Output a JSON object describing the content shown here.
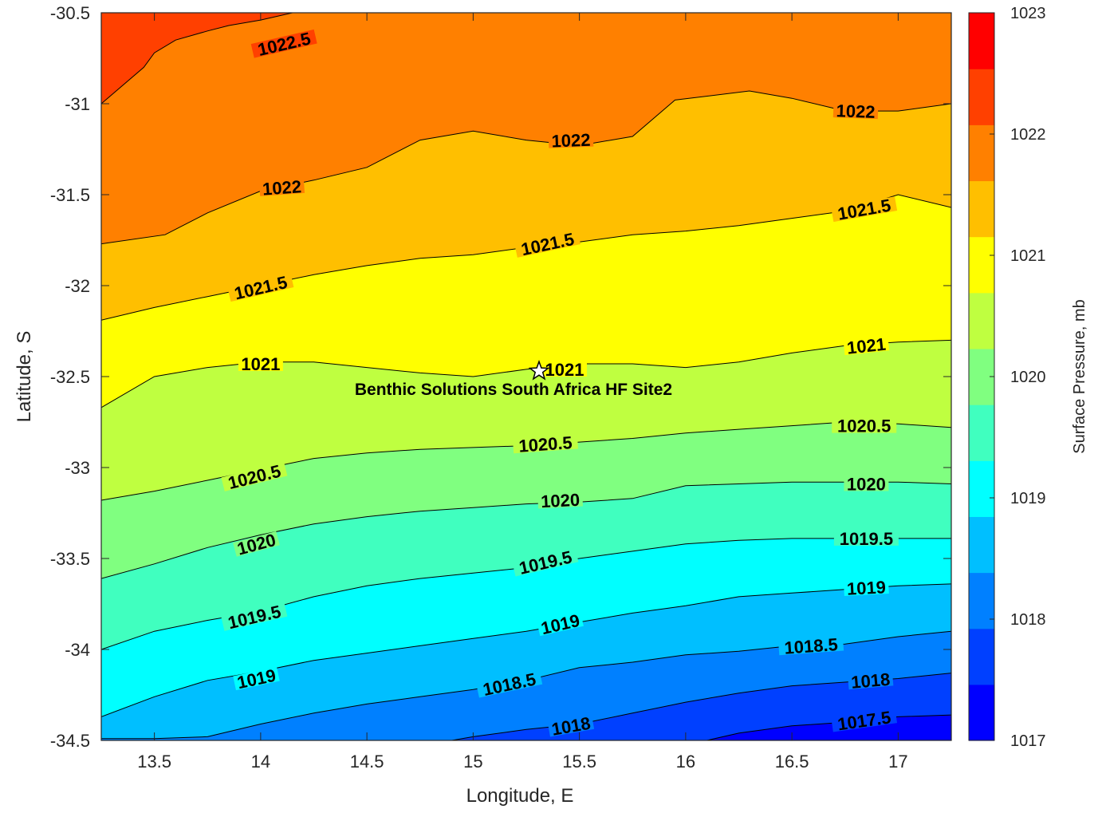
{
  "chart_data": {
    "type": "contour",
    "xlabel": "Longitude, E",
    "ylabel": "Latitude, S",
    "xlim": [
      13.25,
      17.25
    ],
    "ylim": [
      -34.5,
      -30.5
    ],
    "xticks": [
      13.5,
      14,
      14.5,
      15,
      15.5,
      16,
      16.5,
      17
    ],
    "xtick_labels": [
      "13.5",
      "14",
      "14.5",
      "15",
      "15.5",
      "16",
      "16.5",
      "17"
    ],
    "yticks": [
      -30.5,
      -31,
      -31.5,
      -32,
      -32.5,
      -33,
      -33.5,
      -34,
      -34.5
    ],
    "ytick_labels": [
      "-30.5",
      "-31",
      "-31.5",
      "-32",
      "-32.5",
      "-33",
      "-33.5",
      "-34",
      "-34.5"
    ],
    "colorbar": {
      "label": "Surface Pressure, mb",
      "range": [
        1017,
        1023
      ],
      "ticks": [
        1017,
        1018,
        1019,
        1020,
        1021,
        1022,
        1023
      ],
      "tick_labels": [
        "1017",
        "1018",
        "1019",
        "1020",
        "1021",
        "1022",
        "1023"
      ],
      "colors": [
        "#0000FF",
        "#0040FF",
        "#0080FF",
        "#00BFFF",
        "#00FFFF",
        "#40FFBF",
        "#80FF80",
        "#BFFF40",
        "#FFFF00",
        "#FFBF00",
        "#FF8000",
        "#FF4000",
        "#FF0000"
      ]
    },
    "levels": [
      1017.5,
      1018,
      1018.5,
      1019,
      1019.5,
      1020,
      1020.5,
      1021,
      1021.5,
      1022,
      1022.5
    ],
    "contours": [
      {
        "level": 1022.5,
        "points": [
          [
            13.25,
            -31.0
          ],
          [
            13.3,
            -30.95
          ],
          [
            13.45,
            -30.8
          ],
          [
            13.5,
            -30.72
          ],
          [
            13.6,
            -30.65
          ],
          [
            13.75,
            -30.6
          ],
          [
            13.85,
            -30.57
          ],
          [
            14.0,
            -30.54
          ],
          [
            14.15,
            -30.5
          ]
        ]
      },
      {
        "level": 1022,
        "points": [
          [
            13.25,
            -31.77
          ],
          [
            13.55,
            -31.72
          ],
          [
            13.75,
            -31.6
          ],
          [
            14.0,
            -31.48
          ],
          [
            14.25,
            -31.42
          ],
          [
            14.5,
            -31.35
          ],
          [
            14.75,
            -31.2
          ],
          [
            15.0,
            -31.15
          ],
          [
            15.25,
            -31.2
          ],
          [
            15.5,
            -31.23
          ],
          [
            15.75,
            -31.18
          ],
          [
            15.95,
            -30.98
          ],
          [
            16.3,
            -30.93
          ],
          [
            16.5,
            -30.97
          ],
          [
            16.75,
            -31.04
          ],
          [
            17.0,
            -31.04
          ],
          [
            17.25,
            -31.0
          ]
        ]
      },
      {
        "level": 1021.5,
        "points": [
          [
            13.25,
            -32.19
          ],
          [
            13.5,
            -32.12
          ],
          [
            13.75,
            -32.06
          ],
          [
            14.0,
            -32.0
          ],
          [
            14.25,
            -31.94
          ],
          [
            14.5,
            -31.89
          ],
          [
            14.75,
            -31.85
          ],
          [
            15.0,
            -31.83
          ],
          [
            15.25,
            -31.79
          ],
          [
            15.5,
            -31.76
          ],
          [
            15.75,
            -31.72
          ],
          [
            16.0,
            -31.7
          ],
          [
            16.25,
            -31.67
          ],
          [
            16.5,
            -31.63
          ],
          [
            16.75,
            -31.59
          ],
          [
            17.0,
            -31.5
          ],
          [
            17.25,
            -31.57
          ]
        ]
      },
      {
        "level": 1021,
        "points": [
          [
            13.25,
            -32.67
          ],
          [
            13.5,
            -32.5
          ],
          [
            13.75,
            -32.45
          ],
          [
            14.0,
            -32.42
          ],
          [
            14.25,
            -32.42
          ],
          [
            14.5,
            -32.45
          ],
          [
            14.75,
            -32.48
          ],
          [
            15.0,
            -32.5
          ],
          [
            15.25,
            -32.46
          ],
          [
            15.5,
            -32.43
          ],
          [
            15.75,
            -32.43
          ],
          [
            16.0,
            -32.45
          ],
          [
            16.25,
            -32.42
          ],
          [
            16.5,
            -32.37
          ],
          [
            16.75,
            -32.33
          ],
          [
            17.0,
            -32.31
          ],
          [
            17.25,
            -32.3
          ]
        ]
      },
      {
        "level": 1020.5,
        "points": [
          [
            13.25,
            -33.18
          ],
          [
            13.5,
            -33.13
          ],
          [
            13.75,
            -33.07
          ],
          [
            14.0,
            -33.01
          ],
          [
            14.25,
            -32.95
          ],
          [
            14.5,
            -32.92
          ],
          [
            14.75,
            -32.9
          ],
          [
            15.0,
            -32.89
          ],
          [
            15.25,
            -32.88
          ],
          [
            15.5,
            -32.86
          ],
          [
            15.75,
            -32.84
          ],
          [
            16.0,
            -32.81
          ],
          [
            16.25,
            -32.79
          ],
          [
            16.5,
            -32.77
          ],
          [
            16.75,
            -32.75
          ],
          [
            17.0,
            -32.76
          ],
          [
            17.25,
            -32.78
          ]
        ]
      },
      {
        "level": 1020,
        "points": [
          [
            13.25,
            -33.61
          ],
          [
            13.5,
            -33.53
          ],
          [
            13.75,
            -33.44
          ],
          [
            14.0,
            -33.37
          ],
          [
            14.25,
            -33.31
          ],
          [
            14.5,
            -33.27
          ],
          [
            14.75,
            -33.24
          ],
          [
            15.0,
            -33.22
          ],
          [
            15.25,
            -33.2
          ],
          [
            15.5,
            -33.19
          ],
          [
            15.75,
            -33.17
          ],
          [
            16.0,
            -33.1
          ],
          [
            16.25,
            -33.09
          ],
          [
            16.5,
            -33.08
          ],
          [
            16.75,
            -33.08
          ],
          [
            17.0,
            -33.08
          ],
          [
            17.25,
            -33.09
          ]
        ]
      },
      {
        "level": 1019.5,
        "points": [
          [
            13.25,
            -34.0
          ],
          [
            13.5,
            -33.9
          ],
          [
            13.75,
            -33.84
          ],
          [
            14.0,
            -33.79
          ],
          [
            14.25,
            -33.71
          ],
          [
            14.5,
            -33.65
          ],
          [
            14.75,
            -33.61
          ],
          [
            15.0,
            -33.58
          ],
          [
            15.25,
            -33.55
          ],
          [
            15.5,
            -33.5
          ],
          [
            15.75,
            -33.46
          ],
          [
            16.0,
            -33.42
          ],
          [
            16.25,
            -33.4
          ],
          [
            16.5,
            -33.39
          ],
          [
            16.75,
            -33.39
          ],
          [
            17.0,
            -33.39
          ],
          [
            17.25,
            -33.39
          ]
        ]
      },
      {
        "level": 1019,
        "points": [
          [
            13.25,
            -34.37
          ],
          [
            13.5,
            -34.26
          ],
          [
            13.75,
            -34.17
          ],
          [
            14.0,
            -34.12
          ],
          [
            14.25,
            -34.06
          ],
          [
            14.5,
            -34.02
          ],
          [
            14.75,
            -33.98
          ],
          [
            15.0,
            -33.94
          ],
          [
            15.25,
            -33.9
          ],
          [
            15.5,
            -33.85
          ],
          [
            15.75,
            -33.8
          ],
          [
            16.0,
            -33.76
          ],
          [
            16.25,
            -33.71
          ],
          [
            16.5,
            -33.69
          ],
          [
            16.75,
            -33.67
          ],
          [
            17.0,
            -33.65
          ],
          [
            17.25,
            -33.64
          ]
        ]
      },
      {
        "level": 1018.5,
        "points": [
          [
            13.25,
            -34.49
          ],
          [
            13.5,
            -34.49
          ],
          [
            13.75,
            -34.48
          ],
          [
            14.0,
            -34.41
          ],
          [
            14.25,
            -34.35
          ],
          [
            14.5,
            -34.3
          ],
          [
            14.75,
            -34.26
          ],
          [
            15.0,
            -34.22
          ],
          [
            15.25,
            -34.17
          ],
          [
            15.5,
            -34.1
          ],
          [
            15.75,
            -34.07
          ],
          [
            16.0,
            -34.03
          ],
          [
            16.25,
            -34.01
          ],
          [
            16.5,
            -33.98
          ],
          [
            16.75,
            -33.97
          ],
          [
            17.0,
            -33.93
          ],
          [
            17.25,
            -33.9
          ]
        ]
      },
      {
        "level": 1018,
        "points": [
          [
            14.9,
            -34.5
          ],
          [
            15.0,
            -34.48
          ],
          [
            15.25,
            -34.44
          ],
          [
            15.5,
            -34.41
          ],
          [
            15.75,
            -34.35
          ],
          [
            16.0,
            -34.29
          ],
          [
            16.25,
            -34.24
          ],
          [
            16.5,
            -34.2
          ],
          [
            16.75,
            -34.18
          ],
          [
            17.0,
            -34.16
          ],
          [
            17.25,
            -34.13
          ]
        ]
      },
      {
        "level": 1017.5,
        "points": [
          [
            16.1,
            -34.5
          ],
          [
            16.25,
            -34.46
          ],
          [
            16.5,
            -34.42
          ],
          [
            16.75,
            -34.4
          ],
          [
            17.0,
            -34.37
          ],
          [
            17.25,
            -34.36
          ]
        ]
      }
    ],
    "contour_labels": [
      {
        "text": "1022.5",
        "x": 14.11,
        "y": -30.67,
        "angle": -13
      },
      {
        "text": "1022",
        "x": 14.1,
        "y": -31.46,
        "angle": -4
      },
      {
        "text": "1022",
        "x": 15.46,
        "y": -31.2,
        "angle": -2
      },
      {
        "text": "1022",
        "x": 16.8,
        "y": -31.04,
        "angle": 2
      },
      {
        "text": "1021.5",
        "x": 14.0,
        "y": -32.01,
        "angle": -13
      },
      {
        "text": "1021.5",
        "x": 15.35,
        "y": -31.77,
        "angle": -12
      },
      {
        "text": "1021.5",
        "x": 16.84,
        "y": -31.58,
        "angle": -10
      },
      {
        "text": "1021",
        "x": 14.0,
        "y": -32.43,
        "angle": 0
      },
      {
        "text": "1021",
        "x": 15.43,
        "y": -32.46,
        "angle": 0
      },
      {
        "text": "1021",
        "x": 16.85,
        "y": -32.33,
        "angle": -6
      },
      {
        "text": "1020.5",
        "x": 13.97,
        "y": -33.05,
        "angle": -14
      },
      {
        "text": "1020.5",
        "x": 15.34,
        "y": -32.87,
        "angle": -4
      },
      {
        "text": "1020.5",
        "x": 16.84,
        "y": -32.77,
        "angle": 0
      },
      {
        "text": "1020",
        "x": 13.98,
        "y": -33.42,
        "angle": -15
      },
      {
        "text": "1020",
        "x": 15.41,
        "y": -33.18,
        "angle": -3
      },
      {
        "text": "1020",
        "x": 16.85,
        "y": -33.09,
        "angle": 0
      },
      {
        "text": "1019.5",
        "x": 15.34,
        "y": -33.52,
        "angle": -13
      },
      {
        "text": "1019.5",
        "x": 13.97,
        "y": -33.82,
        "angle": -13
      },
      {
        "text": "1019.5",
        "x": 16.85,
        "y": -33.39,
        "angle": 0
      },
      {
        "text": "1019",
        "x": 13.98,
        "y": -34.16,
        "angle": -12
      },
      {
        "text": "1019",
        "x": 15.41,
        "y": -33.86,
        "angle": -13
      },
      {
        "text": "1019",
        "x": 16.85,
        "y": -33.66,
        "angle": -3
      },
      {
        "text": "1018.5",
        "x": 15.17,
        "y": -34.19,
        "angle": -12
      },
      {
        "text": "1018.5",
        "x": 16.59,
        "y": -33.98,
        "angle": -4
      },
      {
        "text": "1018",
        "x": 15.46,
        "y": -34.42,
        "angle": -10
      },
      {
        "text": "1018",
        "x": 16.87,
        "y": -34.17,
        "angle": -5
      },
      {
        "text": "1017.5",
        "x": 16.84,
        "y": -34.39,
        "angle": -8
      }
    ],
    "marker": {
      "name": "Benthic Solutions South Africa HF Site2",
      "x": 15.31,
      "y": -32.47,
      "symbol": "star"
    },
    "annotation": {
      "text": "Benthic Solutions South Africa HF Site2",
      "x": 15.19,
      "y": -32.57
    }
  }
}
